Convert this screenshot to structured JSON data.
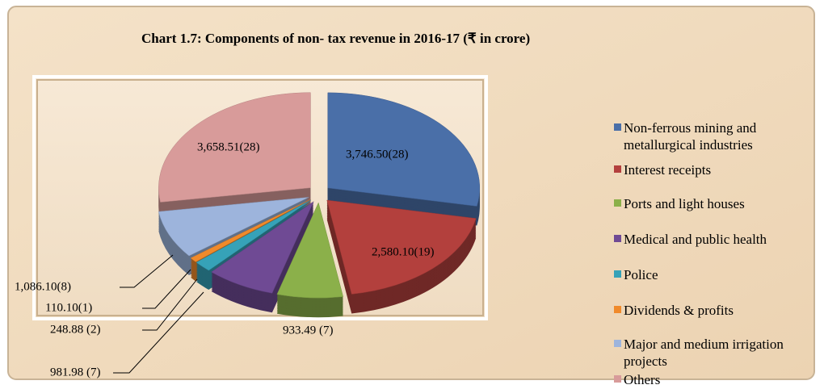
{
  "chart_data": {
    "type": "pie",
    "title": "Chart 1.7: Components of non- tax revenue in 2016-17 (₹ in crore)",
    "categories": [
      "Non-ferrous mining and metallurgical industries",
      "Interest receipts",
      "Ports and light houses",
      "Medical and public health",
      "Police",
      "Dividends & profits",
      "Major and medium irrigation projects",
      "Others"
    ],
    "values": [
      3746.5,
      2580.1,
      933.49,
      981.98,
      248.88,
      110.1,
      1086.1,
      3658.51
    ],
    "value_labels": [
      "3,746.50(28)",
      "2,580.10(19)",
      "933.49 (7)",
      "981.98 (7)",
      "248.88 (2)",
      "110.10(1)",
      "1,086.10(8)",
      "3,658.51(28)"
    ],
    "colors": [
      "#4a6fa8",
      "#b3403d",
      "#8bb04a",
      "#6f4a94",
      "#36a2b8",
      "#f08a2b",
      "#9db4dc",
      "#d89b9a"
    ],
    "legend": "right"
  }
}
